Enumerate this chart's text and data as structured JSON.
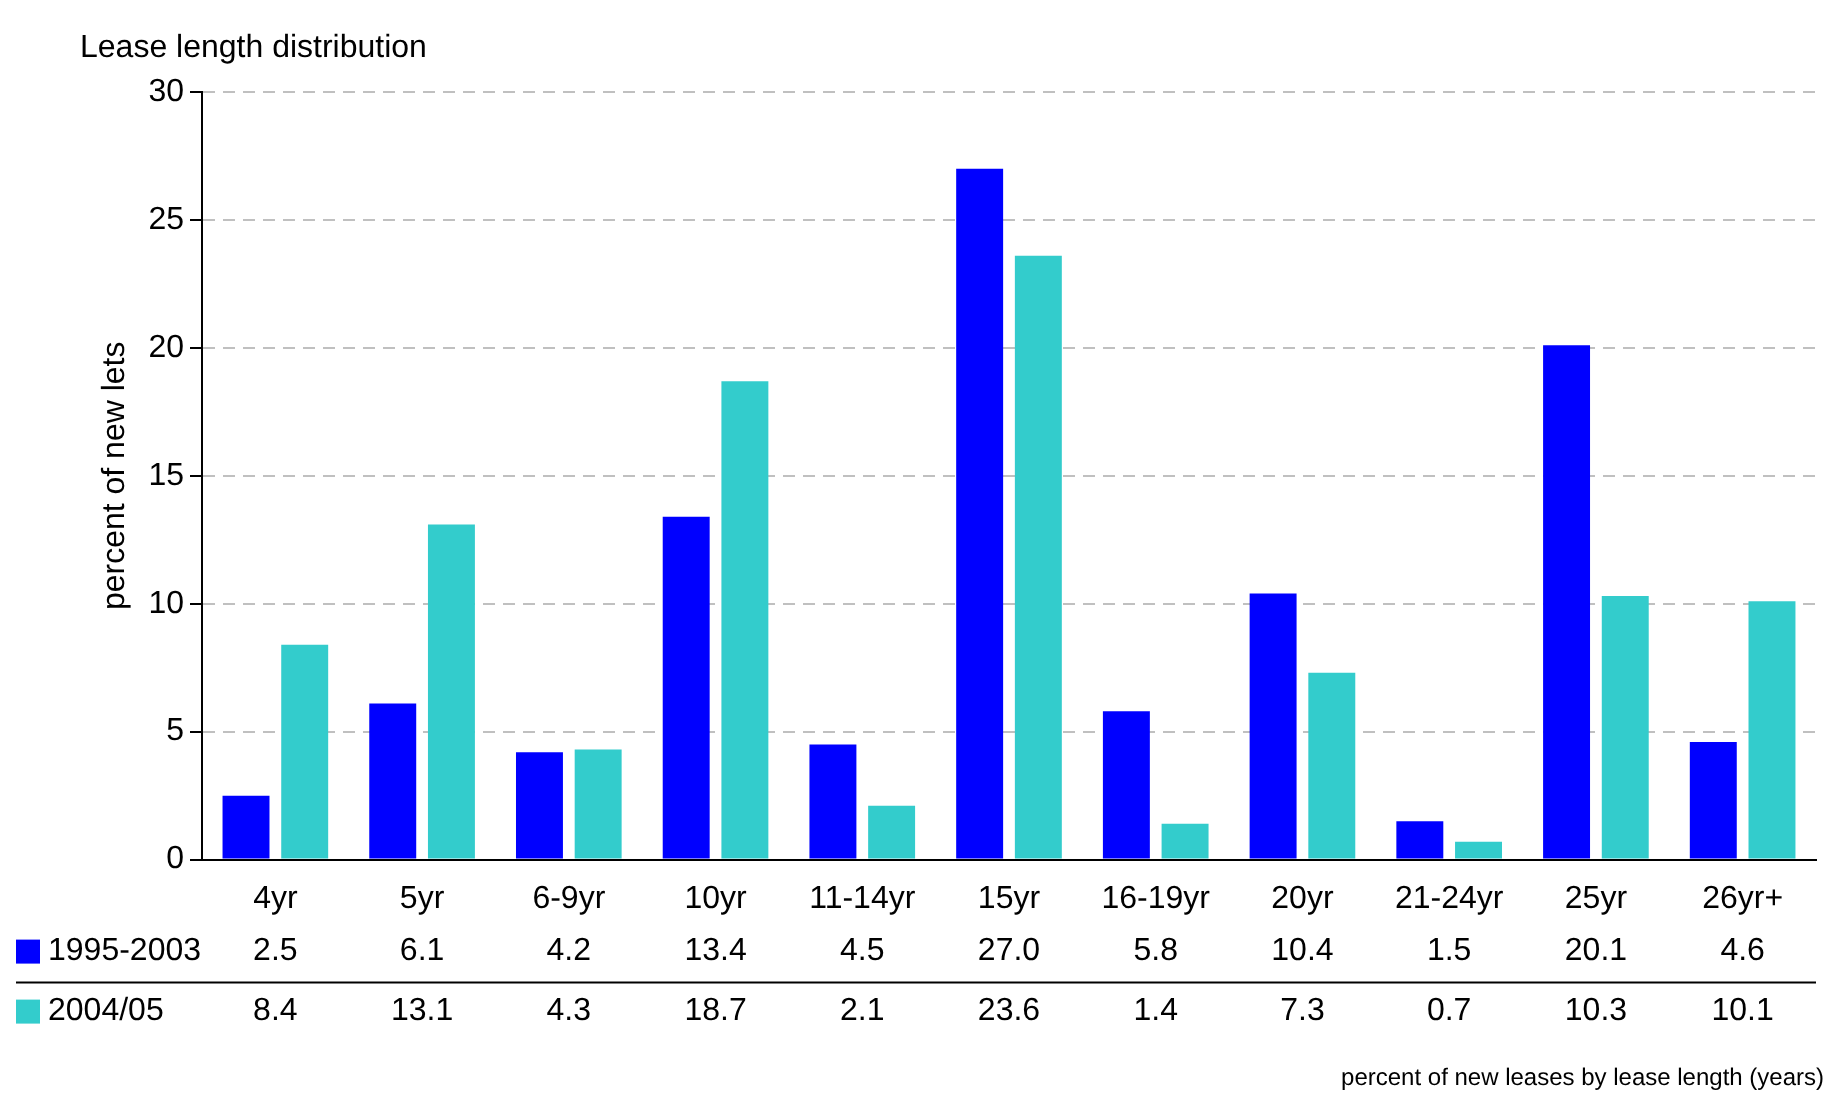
{
  "chart_data": {
    "type": "bar",
    "title": "Lease length distribution",
    "ylabel": "percent of new lets",
    "categories": [
      "4yr",
      "5yr",
      "6-9yr",
      "10yr",
      "11-14yr",
      "15yr",
      "16-19yr",
      "20yr",
      "21-24yr",
      "25yr",
      "26yr+"
    ],
    "series": [
      {
        "name": "1995-2003",
        "color": "#0000ff",
        "values": [
          2.5,
          6.1,
          4.2,
          13.4,
          4.5,
          27.0,
          5.8,
          10.4,
          1.5,
          20.1,
          4.6
        ],
        "value_labels": [
          "2.5",
          "6.1",
          "4.2",
          "13.4",
          "4.5",
          "27.0",
          "5.8",
          "10.4",
          "1.5",
          "20.1",
          "4.6"
        ]
      },
      {
        "name": "2004/05",
        "color": "#33cccc",
        "values": [
          8.4,
          13.1,
          4.3,
          18.7,
          2.1,
          23.6,
          1.4,
          7.3,
          0.7,
          10.3,
          10.1
        ],
        "value_labels": [
          "8.4",
          "13.1",
          "4.3",
          "18.7",
          "2.1",
          "23.6",
          "1.4",
          "7.3",
          "0.7",
          "10.3",
          "10.1"
        ]
      }
    ],
    "ylim": [
      0,
      30
    ],
    "yticks": [
      0,
      5,
      10,
      15,
      20,
      25,
      30
    ],
    "grid": "y",
    "legend": "bottom left",
    "annotations": [
      "percent of new leases by lease length (years)"
    ]
  }
}
